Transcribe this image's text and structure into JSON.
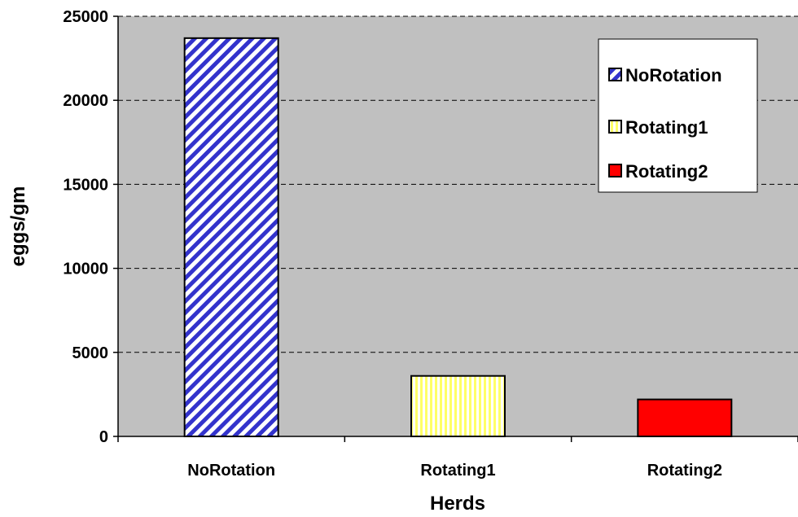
{
  "chart_data": {
    "type": "bar",
    "categories": [
      "NoRotation",
      "Rotating1",
      "Rotating2"
    ],
    "values": [
      23700,
      3600,
      2200
    ],
    "xlabel": "Herds",
    "ylabel": "eggs/gm",
    "ylim": [
      0,
      25000
    ],
    "yticks": [
      0,
      5000,
      10000,
      15000,
      20000,
      25000
    ],
    "grid": "horizontal dashed",
    "plot_background": "#c0c0c0",
    "legend_position": "top-right",
    "legend": [
      "NoRotation",
      "Rotating1",
      "Rotating2"
    ],
    "bar_styles": [
      {
        "fill": "#3333cc",
        "bg": "#ffffff",
        "pattern": "diagonal-stripes"
      },
      {
        "fill": "#ffff66",
        "bg": "#ffffff",
        "pattern": "vertical-stripes"
      },
      {
        "fill": "#ff0000",
        "pattern": "solid"
      }
    ]
  }
}
